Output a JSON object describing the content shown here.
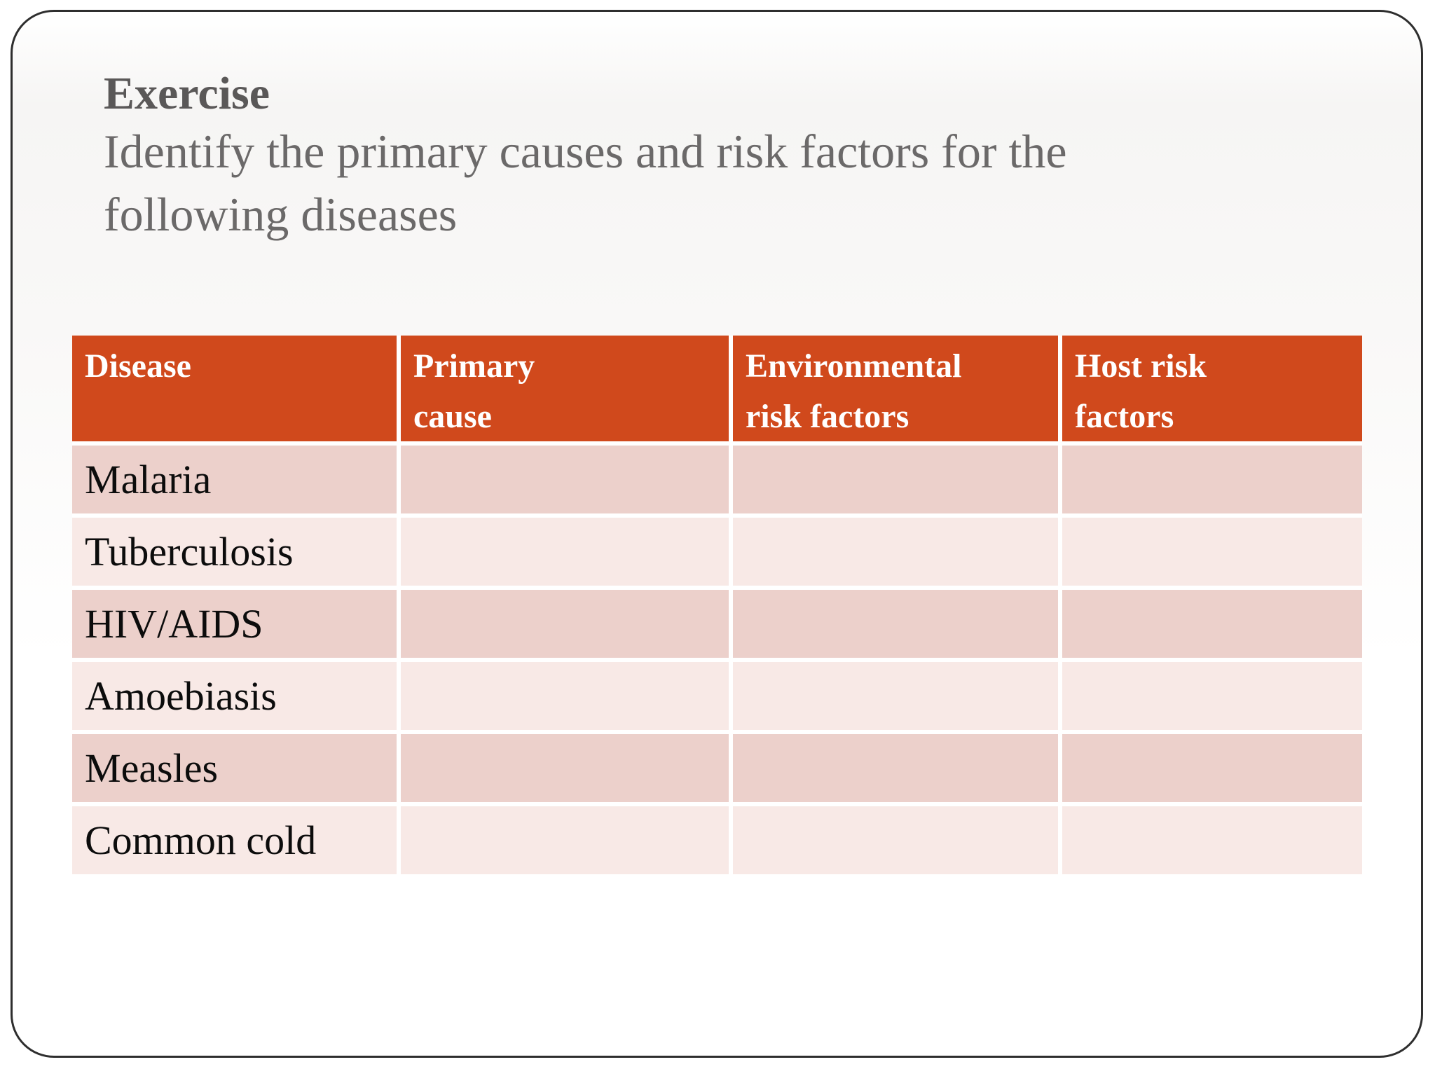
{
  "slide": {
    "title": "Exercise",
    "subtitle_line1": "Identify the primary causes and risk factors for the",
    "subtitle_line2": "following diseases"
  },
  "table": {
    "header": [
      {
        "line1": "Disease",
        "line2": ""
      },
      {
        "line1": "Primary",
        "line2": "cause"
      },
      {
        "line1": "Environmental",
        "line2": "risk factors"
      },
      {
        "line1": "Host risk",
        "line2": "factors"
      }
    ],
    "diseases": [
      "Malaria",
      "Tuberculosis",
      "HIV/AIDS",
      "Amoebiasis",
      "Measles",
      "Common cold"
    ]
  },
  "colors": {
    "header_bg": "#d0491c",
    "row_odd_bg": "#ecd0cb",
    "row_even_bg": "#f8e9e6",
    "title_text": "#5a5858",
    "subtitle_text": "#6b6969",
    "border": "#2e2e2e",
    "header_text": "#ffffff",
    "body_text": "#0c0c0c"
  }
}
